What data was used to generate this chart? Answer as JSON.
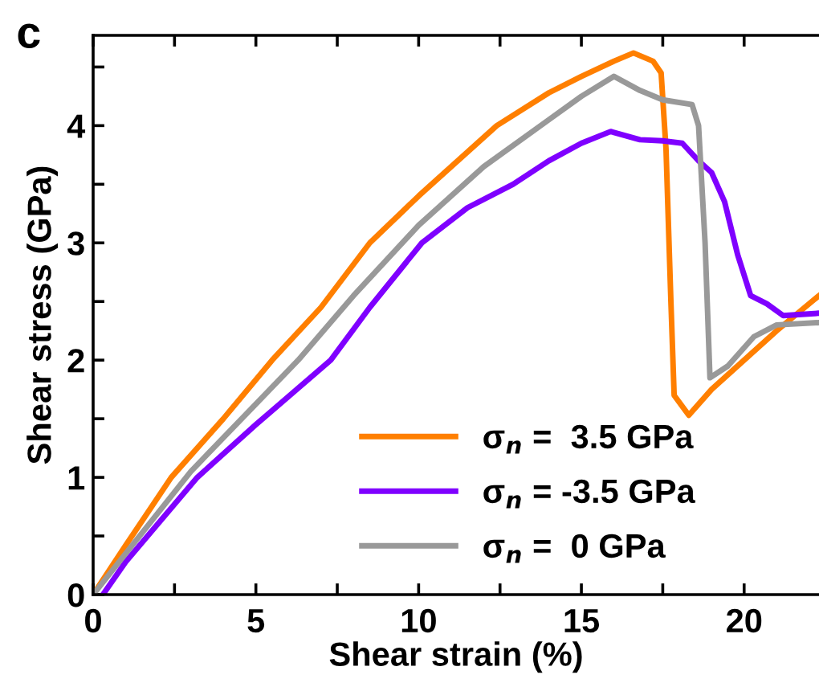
{
  "chart_data": {
    "type": "line",
    "xlabel": "Shear strain (%)",
    "ylabel": "Shear stress (GPa)",
    "annotations": [
      "c"
    ],
    "xlim": [
      0,
      22.3
    ],
    "ylim": [
      0,
      4.77
    ],
    "xticks": [
      0,
      {
        "value": 2.5,
        "label": null
      },
      5,
      {
        "value": 7.5,
        "label": null
      },
      10,
      {
        "value": 12.5,
        "label": null
      },
      15,
      {
        "value": 17.5,
        "label": null
      },
      20
    ],
    "yticks": [
      0,
      {
        "value": 0.5,
        "label": null
      },
      1,
      {
        "value": 1.5,
        "label": null
      },
      2,
      {
        "value": 2.5,
        "label": null
      },
      3,
      {
        "value": 3.5,
        "label": null
      },
      4,
      {
        "value": 4.5,
        "label": null
      }
    ],
    "grid": false,
    "legend": "bottom",
    "marker": "none",
    "line_style": "solid",
    "series": [
      {
        "name": "σ$_{n}$ =  3.5 GPa",
        "color": "#ff7f00",
        "x": [
          0,
          1,
          2.4,
          4,
          5.5,
          7,
          8.5,
          10,
          12.4,
          14,
          15,
          16,
          16.6,
          17.2,
          17.45,
          17.6,
          17.75,
          17.85,
          18.3,
          19,
          20,
          21,
          22.3
        ],
        "values": [
          0,
          0.42,
          1,
          1.5,
          2,
          2.45,
          3,
          3.4,
          4,
          4.28,
          4.42,
          4.55,
          4.62,
          4.55,
          4.45,
          3.8,
          2.5,
          1.7,
          1.53,
          1.75,
          2.0,
          2.25,
          2.55
        ]
      },
      {
        "name": "σ$_{n}$ = -3.5 GPa",
        "color": "#7f00ff",
        "x": [
          0.3,
          1,
          3.2,
          5,
          7.3,
          8.5,
          10.1,
          11.5,
          12.9,
          14,
          15,
          15.9,
          16.8,
          17.5,
          18.1,
          18.6,
          19.0,
          19.4,
          19.8,
          20.2,
          20.7,
          21.2,
          22.3
        ],
        "values": [
          0,
          0.28,
          1,
          1.45,
          2,
          2.45,
          3,
          3.3,
          3.5,
          3.7,
          3.85,
          3.95,
          3.88,
          3.87,
          3.85,
          3.7,
          3.6,
          3.35,
          2.9,
          2.55,
          2.48,
          2.38,
          2.4
        ]
      },
      {
        "name": "σ$_{n}$ =  0 GPa",
        "color": "#999999",
        "x": [
          0,
          1,
          3,
          6.3,
          8,
          10,
          12,
          14,
          15,
          16,
          16.8,
          17.5,
          18.4,
          18.6,
          18.8,
          18.95,
          19.5,
          20.3,
          21,
          22.3
        ],
        "values": [
          0,
          0.35,
          1.05,
          2,
          2.55,
          3.15,
          3.65,
          4.05,
          4.25,
          4.42,
          4.3,
          4.22,
          4.18,
          4.0,
          3.0,
          1.85,
          1.95,
          2.2,
          2.3,
          2.32
        ]
      }
    ]
  }
}
